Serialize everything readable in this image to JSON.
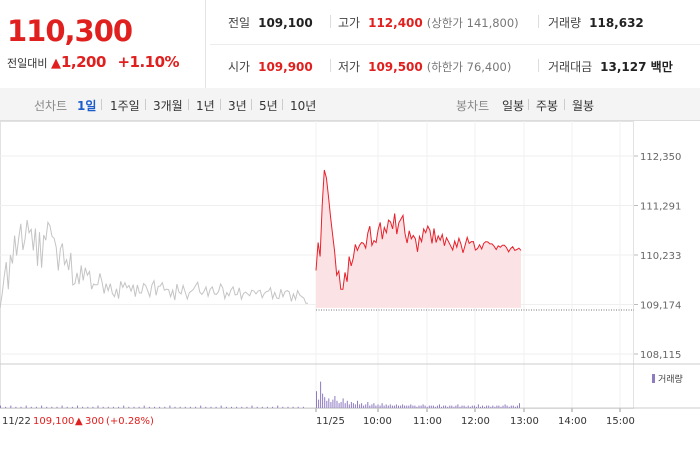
{
  "summary": {
    "price": "110,300",
    "change_label": "전일대비",
    "change_arrow": "▲",
    "change_value": "1,200",
    "change_pct": "+1.10%",
    "prev_close": {
      "label": "전일",
      "value": "109,100"
    },
    "high": {
      "label": "고가",
      "value": "112,400",
      "sub": "(상한가 141,800)"
    },
    "volume": {
      "label": "거래량",
      "value": "118,632"
    },
    "open": {
      "label": "시가",
      "value": "109,900"
    },
    "low": {
      "label": "저가",
      "value": "109,500",
      "sub": "(하한가 76,400)"
    },
    "amount": {
      "label": "거래대금",
      "value": "13,127 백만"
    }
  },
  "line_tabs": {
    "title": "선차트",
    "items": [
      "1일",
      "1주일",
      "3개월",
      "1년",
      "3년",
      "5년",
      "10년"
    ],
    "active": "1일"
  },
  "candle_tabs": {
    "title": "봉차트",
    "items": [
      "일봉",
      "주봉",
      "월봉"
    ]
  },
  "chart_data": {
    "type": "line",
    "y_ticks": [
      "112,350",
      "111,291",
      "110,233",
      "109,174",
      "108,115"
    ],
    "prev_day": {
      "date": "11/22",
      "close": "109,100",
      "change_arrow": "▲",
      "change": "300",
      "change_pct": "(+0.28%)"
    },
    "today_date": "11/25",
    "x_ticks": [
      "10:00",
      "11:00",
      "12:00",
      "13:00",
      "14:00",
      "15:00"
    ],
    "volume_legend": "거래량",
    "colors": {
      "prev_line": "#c4c4c4",
      "today_line": "#e8202a",
      "today_fill": "#fbe3e5",
      "volume": "#8e7bc2"
    },
    "series": [
      {
        "values": [
          109100,
          109390,
          109770,
          110080,
          109500,
          110230,
          110050,
          110650,
          110220,
          110590,
          110900,
          110340,
          110570,
          110980,
          110710,
          110780,
          110330,
          110800,
          110000,
          110720,
          109960,
          110660,
          110550,
          110930,
          110860,
          110630,
          110590,
          110400,
          109900,
          110370,
          110480,
          110030,
          110130,
          109910,
          110280,
          109590,
          109620,
          109850,
          109610,
          110010,
          109690,
          109960,
          109800,
          109880,
          109500,
          109610,
          109590,
          109600,
          109840,
          109660,
          109410,
          109620,
          109470,
          109620,
          109410,
          109340,
          109510,
          109300,
          109670,
          109540,
          109640,
          109530,
          109580,
          109460,
          109600,
          109340,
          109590,
          109420,
          109420,
          109620,
          109580,
          109460,
          109340,
          109590,
          109680,
          109370,
          109560,
          109570,
          109640,
          109480,
          109500,
          109490,
          109340,
          109480,
          109270,
          109610,
          109440,
          109400,
          109580,
          109440,
          109290,
          109430,
          109460,
          109500,
          109580,
          109650,
          109440,
          109390,
          109450,
          109550,
          109350,
          109500,
          109550,
          109400,
          109390,
          109450,
          109610,
          109530,
          109300,
          109430,
          109360,
          109490,
          109550,
          109380,
          109390,
          109530,
          109290,
          109410,
          109440,
          109400,
          109360,
          109480,
          109460,
          109400,
          109460,
          109480,
          109320,
          109410,
          109450,
          109460,
          109530,
          109300,
          109430,
          109310,
          109300,
          109500,
          109340,
          109450,
          109470,
          109440,
          109240,
          109400,
          109280,
          109470,
          109380,
          109340,
          109310,
          109200,
          109200
        ]
      },
      {
        "values": [
          109900,
          110500,
          110200,
          111300,
          112050,
          111880,
          111500,
          111060,
          110670,
          110310,
          109800,
          109890,
          109500,
          109500,
          109860,
          109660,
          110200,
          110000,
          110170,
          110460,
          110330,
          110440,
          110500,
          110480,
          110380,
          110700,
          110850,
          110440,
          110540,
          110500,
          110770,
          110930,
          110570,
          110820,
          110710,
          110980,
          110940,
          110790,
          111120,
          110680,
          110920,
          111000,
          111080,
          110690,
          110490,
          110750,
          110580,
          110650,
          110580,
          110300,
          110630,
          110520,
          110790,
          110710,
          110850,
          110760,
          110480,
          110800,
          110500,
          110640,
          110550,
          110670,
          110430,
          110600,
          110520,
          110430,
          110340,
          110530,
          110400,
          110590,
          110470,
          110280,
          110440,
          110610,
          110480,
          110520,
          110520,
          110340,
          110370,
          110450,
          110360,
          110480,
          110520,
          110510,
          110470,
          110470,
          110420,
          110350,
          110430,
          110400,
          110440,
          110440,
          110390,
          110300,
          110370,
          110410,
          110330,
          110350,
          110380,
          110330
        ]
      }
    ],
    "volume_today": [
      14,
      7,
      22,
      12,
      9,
      6,
      8,
      5,
      7,
      10,
      6,
      4,
      5,
      8,
      4,
      6,
      3,
      5,
      4,
      3,
      6,
      3,
      4,
      2,
      3,
      5,
      2,
      3,
      4,
      2,
      3,
      2,
      4,
      2,
      3,
      2,
      3,
      2,
      2,
      3,
      2,
      2,
      3,
      2,
      2,
      2,
      3,
      2,
      2,
      1,
      2,
      2,
      3,
      2,
      1,
      2,
      2,
      2,
      1,
      2,
      3,
      1,
      2,
      2,
      1,
      2,
      2,
      1,
      2,
      3,
      1,
      2,
      2,
      1,
      2,
      1,
      2,
      2,
      1,
      3,
      1,
      2,
      1,
      2,
      2,
      1,
      2,
      1,
      2,
      2,
      1,
      2,
      3,
      2,
      1,
      2,
      2,
      1,
      2,
      4
    ],
    "volume_prev": [
      2,
      1,
      2,
      1,
      1,
      2,
      1,
      1,
      2,
      1,
      1,
      1,
      2,
      1,
      1,
      2,
      1,
      1,
      1,
      2,
      1,
      1,
      1,
      1,
      2,
      1,
      1,
      1,
      2,
      1,
      1,
      1,
      1,
      2,
      1,
      1,
      1,
      1,
      1,
      2,
      1,
      1,
      1,
      2,
      1,
      1,
      1,
      1,
      1,
      2,
      1,
      1,
      1,
      1,
      2,
      1,
      1,
      1,
      1,
      1
    ]
  }
}
